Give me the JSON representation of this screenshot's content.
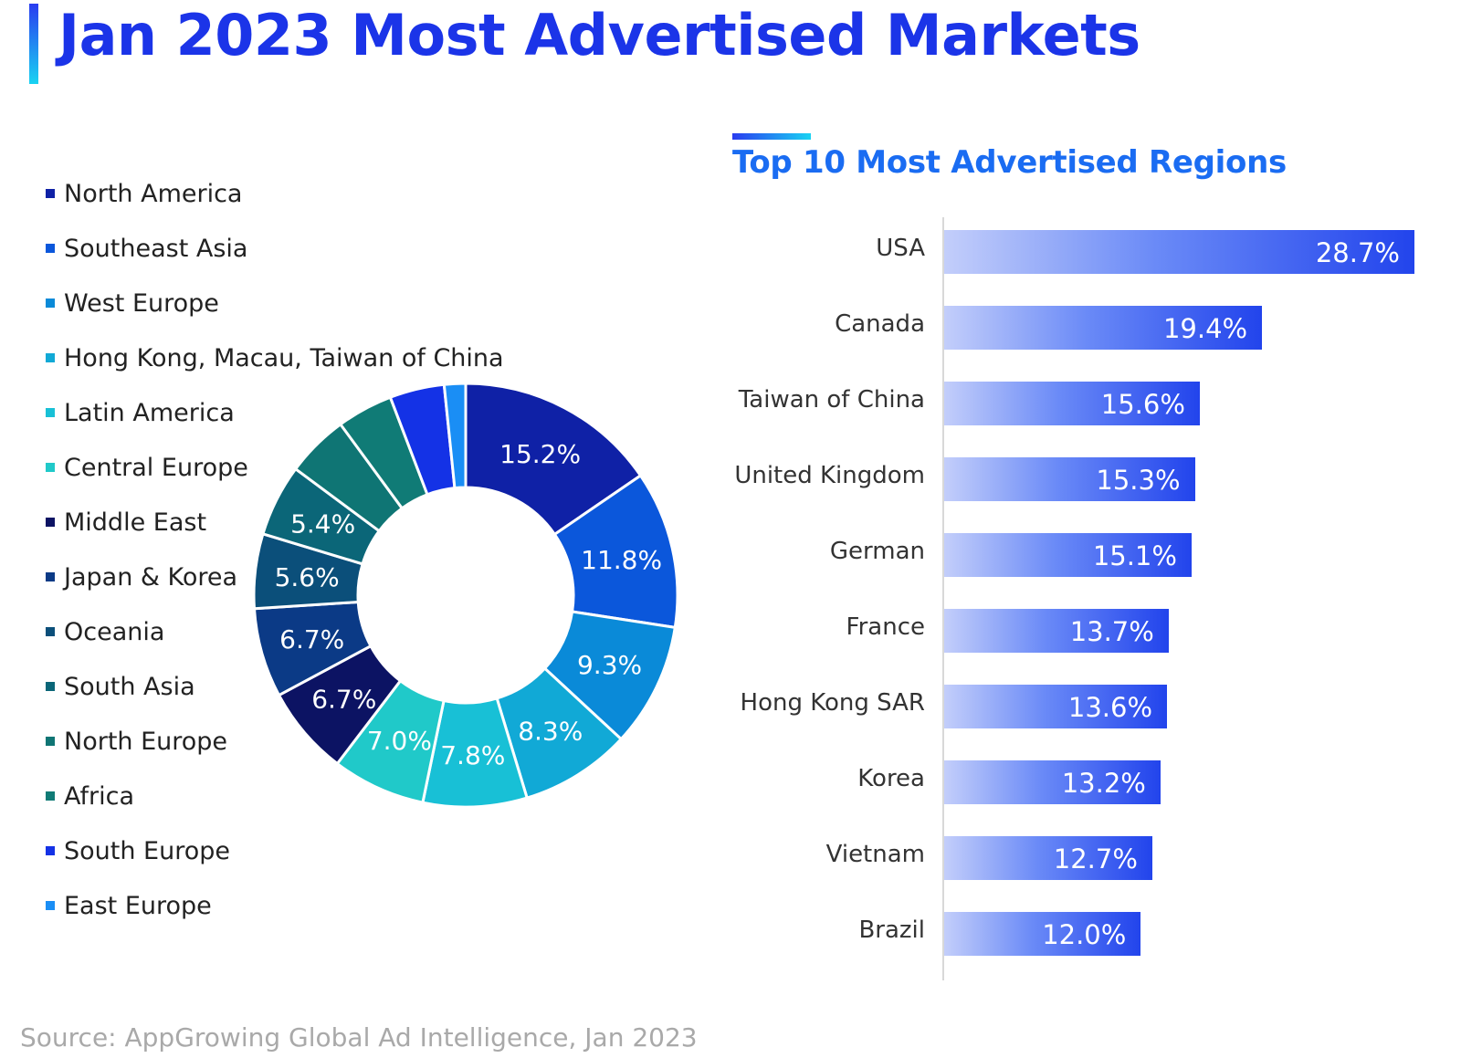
{
  "title": "Jan 2023 Most Advertised Markets",
  "source": "Source: AppGrowing Global Ad Intelligence, Jan 2023",
  "chart_data": [
    {
      "type": "pie",
      "variant": "donut",
      "title": "",
      "legend_position": "left",
      "categories": [
        "North America",
        "Southeast Asia",
        "West Europe",
        "Hong Kong, Macau, Taiwan of China",
        "Latin America",
        "Central Europe",
        "Middle East",
        "Japan & Korea",
        "Oceania",
        "South Asia",
        "North Europe",
        "Africa",
        "South Europe",
        "East Europe"
      ],
      "values": [
        15.2,
        11.8,
        9.3,
        8.3,
        7.8,
        7.0,
        6.7,
        6.7,
        5.6,
        5.4,
        4.7,
        4.2,
        4.1,
        1.6
      ],
      "value_labels": [
        "15.2%",
        "11.8%",
        "9.3%",
        "8.3%",
        "7.8%",
        "7.0%",
        "6.7%",
        "6.7%",
        "5.6%",
        "5.4%",
        "",
        "",
        "",
        ""
      ],
      "colors": [
        "#0f21a6",
        "#0b57db",
        "#0a8ad8",
        "#11a9d6",
        "#18c0d6",
        "#20c9c9",
        "#0c1363",
        "#0b3a86",
        "#0b4f7a",
        "#0b6678",
        "#0f7574",
        "#107b76",
        "#1432e6",
        "#1a8ef5"
      ]
    },
    {
      "type": "bar",
      "orientation": "horizontal",
      "title": "Top 10 Most Advertised Regions",
      "categories": [
        "USA",
        "Canada",
        "Taiwan of China",
        "United Kingdom",
        "German",
        "France",
        "Hong Kong SAR",
        "Korea",
        "Vietnam",
        "Brazil"
      ],
      "values": [
        28.7,
        19.4,
        15.6,
        15.3,
        15.1,
        13.7,
        13.6,
        13.2,
        12.7,
        12.0
      ],
      "value_labels": [
        "28.7%",
        "19.4%",
        "15.6%",
        "15.3%",
        "15.1%",
        "13.7%",
        "13.6%",
        "13.2%",
        "12.7%",
        "12.0%"
      ],
      "xlim": [
        0,
        28.7
      ],
      "grid": false
    }
  ]
}
